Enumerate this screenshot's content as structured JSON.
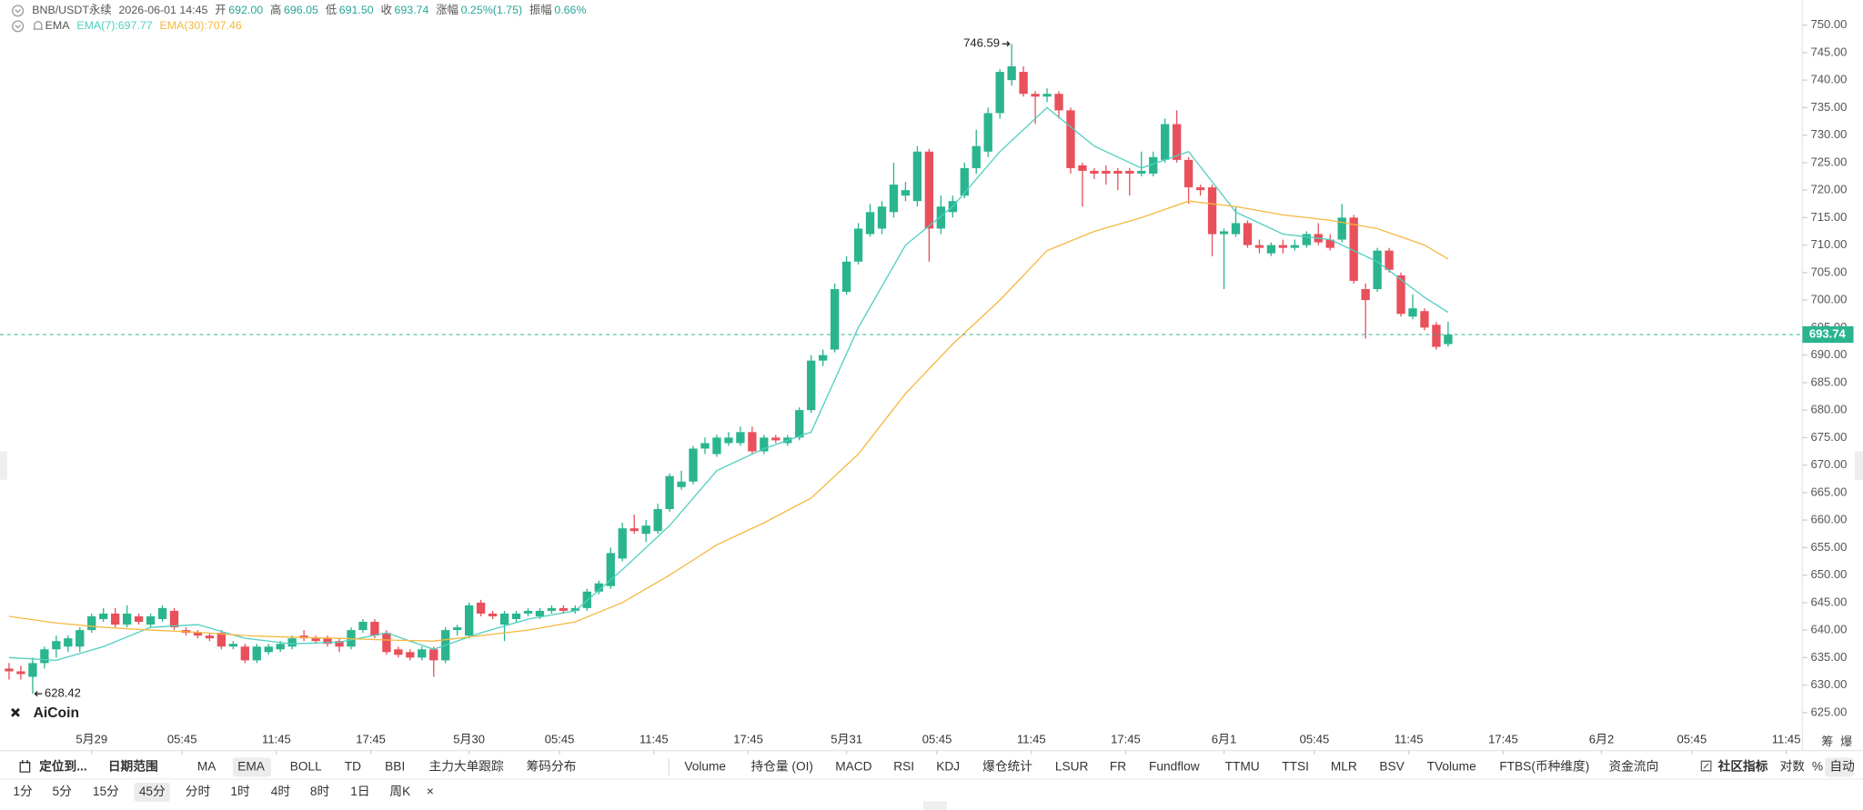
{
  "chart_data": {
    "type": "candlestick",
    "header": [
      "BNB/USDT永续",
      "2026-06-01 14:45",
      "开",
      "692.00",
      "高",
      "696.05",
      "低",
      "691.50",
      "收",
      "693.74",
      "涨幅",
      "0.25%(1.75)",
      "振幅",
      "0.66%"
    ],
    "indicator_label": "EMA",
    "up_color": "#2ab58f",
    "down_color": "#e8505b",
    "x": [
      -5.25,
      -4.5,
      -3.75,
      -3,
      -2.25,
      -1.5,
      -0.75,
      0,
      0.75,
      1.5,
      2.25,
      3,
      3.75,
      4.5,
      5.25,
      6,
      6.75,
      7.5,
      8.25,
      9,
      9.75,
      10.5,
      11.25,
      12,
      12.75,
      13.5,
      14.25,
      15,
      15.75,
      16.5,
      17.25,
      18,
      18.75,
      19.5,
      20.25,
      21,
      21.75,
      22.5,
      23.25,
      24,
      24.75,
      25.5,
      26.25,
      27,
      27.75,
      28.5,
      29.25,
      30,
      30.75,
      31.5,
      32.25,
      33,
      33.75,
      34.5,
      35.25,
      36,
      36.75,
      37.5,
      38.25,
      39,
      39.75,
      40.5,
      41.25,
      42,
      42.75,
      43.5,
      44.25,
      45,
      45.75,
      46.5,
      47.25,
      48,
      48.75,
      49.5,
      50.25,
      51,
      51.75,
      52.5,
      53.25,
      54,
      54.75,
      55.5,
      56.25,
      57,
      57.75,
      58.5,
      59.25,
      60,
      60.75,
      61.5,
      62.25,
      63,
      63.75,
      64.5,
      65.25,
      66,
      66.75,
      67.5,
      68.25,
      69,
      69.75,
      70.5,
      71.25,
      72,
      72.75,
      73.5,
      74.25,
      75,
      75.75,
      76.5,
      77.25,
      78,
      78.75,
      79.5,
      80.25,
      81,
      81.75,
      82.5,
      83.25,
      84,
      84.75,
      85.5,
      86.25
    ],
    "open": [
      633,
      632.5,
      631.5,
      634,
      636.5,
      637,
      637,
      640,
      642,
      643,
      641,
      642.5,
      641,
      642,
      643.5,
      640,
      639.5,
      639,
      639.5,
      637,
      637,
      634.5,
      636,
      636.5,
      637,
      639,
      638.5,
      638.5,
      638,
      637,
      640,
      641.5,
      639.5,
      636.5,
      636,
      635,
      636.5,
      634.5,
      640,
      639,
      645,
      643,
      641,
      642,
      643,
      642.5,
      643.5,
      644,
      643.5,
      644,
      647,
      648,
      653,
      658.5,
      657.5,
      658,
      662,
      666,
      667,
      673,
      672,
      674,
      674,
      676,
      672.5,
      675,
      674,
      675,
      680,
      689,
      691,
      701.5,
      707,
      712,
      713,
      716,
      719,
      718,
      727,
      713,
      716,
      719,
      724,
      727,
      734,
      740,
      741.5,
      737.5,
      737,
      737.5,
      734.5,
      724.5,
      723.5,
      723.5,
      723.5,
      723.5,
      723,
      723,
      725.5,
      732,
      725.5,
      720.5,
      720.5,
      712,
      712,
      714,
      710,
      708.5,
      710,
      709.5,
      710,
      712,
      711,
      711,
      715,
      702,
      702,
      709,
      704.5,
      697,
      698,
      695.5,
      692
    ],
    "high": [
      634,
      633.5,
      635,
      637,
      639,
      639,
      640.5,
      643,
      644,
      644,
      644.5,
      643,
      643,
      644.5,
      644,
      640.5,
      640,
      639.5,
      640,
      638,
      637.5,
      637.5,
      637.5,
      638,
      639,
      640,
      639,
      639,
      638.5,
      640.5,
      642,
      642,
      640,
      637,
      636.5,
      637,
      637,
      640.5,
      641,
      645,
      645.5,
      643.5,
      643.5,
      643.5,
      644,
      644,
      644.5,
      644.5,
      644.5,
      647.5,
      649,
      655,
      659.5,
      661,
      660,
      663,
      668.5,
      669,
      673.5,
      675,
      675.5,
      676,
      677,
      677,
      675.5,
      675.5,
      675.5,
      680.5,
      690,
      691,
      703,
      708,
      714,
      717.5,
      718,
      725,
      721.5,
      728,
      727.5,
      719,
      719,
      725,
      731,
      735,
      742,
      746.59,
      742.5,
      738,
      738.5,
      738,
      735,
      725,
      724,
      724.5,
      724,
      724,
      727,
      727,
      733,
      734.5,
      726,
      721,
      721,
      713,
      717,
      714.5,
      711,
      710.5,
      711,
      711,
      712.5,
      714,
      712,
      717.5,
      715.5,
      703,
      709.5,
      709.5,
      705,
      701,
      698.5,
      696,
      696.05
    ],
    "low": [
      631,
      631,
      628.42,
      633,
      635,
      636,
      636,
      639.5,
      641.5,
      640.5,
      640.5,
      641,
      640.5,
      641.5,
      640,
      639,
      638.5,
      638,
      636.5,
      636.5,
      634,
      634,
      635.5,
      636,
      636.5,
      638,
      637.5,
      637,
      636,
      636.5,
      639.5,
      638.5,
      635.5,
      635,
      634.5,
      634.5,
      631.5,
      634,
      639,
      638.5,
      642.5,
      642,
      638,
      641.5,
      642.5,
      642,
      643,
      643,
      643,
      643.5,
      646.5,
      647.5,
      652.5,
      657.5,
      656,
      657.5,
      661.5,
      665.5,
      666.5,
      672,
      671.5,
      673.5,
      673.5,
      672,
      672,
      674,
      673.5,
      674.5,
      679.5,
      688,
      690.5,
      701,
      706.5,
      711.5,
      712,
      715,
      718,
      717,
      707,
      712,
      715,
      718.5,
      723,
      726,
      733,
      739,
      737,
      732,
      736,
      733,
      723,
      717,
      722,
      721,
      720,
      719,
      722.5,
      722.5,
      725,
      725,
      717.5,
      719,
      708,
      702,
      711.5,
      709.5,
      708.5,
      708,
      708.5,
      709,
      709.5,
      710,
      709,
      710.5,
      703,
      693,
      701.5,
      705,
      697,
      696.5,
      694.5,
      691,
      691.5
    ],
    "close": [
      632.5,
      632,
      634,
      636.5,
      638,
      638.5,
      640,
      642.5,
      643,
      641,
      643,
      641.5,
      642.5,
      644,
      640.5,
      639.5,
      639,
      638.5,
      637,
      637.5,
      634.5,
      637,
      637,
      637.5,
      638.5,
      638.5,
      638,
      637.5,
      637,
      640,
      641.5,
      639,
      636,
      635.5,
      635,
      636.5,
      634.5,
      640,
      640.5,
      644.5,
      643,
      642.5,
      643,
      643,
      643.5,
      643.5,
      644,
      643.5,
      644,
      647,
      648.5,
      654,
      658.5,
      658,
      659,
      662,
      668,
      667,
      673,
      674,
      675,
      675,
      676,
      672.5,
      675,
      674.5,
      675,
      680,
      689,
      690,
      702,
      707,
      713,
      716,
      717,
      721,
      720,
      727,
      713,
      717,
      718,
      724,
      728,
      734,
      741.5,
      742.5,
      737.5,
      737,
      737.5,
      734.5,
      724,
      723.5,
      723,
      723,
      723,
      723,
      723.5,
      726,
      732,
      725.5,
      720.5,
      720,
      712,
      712.5,
      714,
      710,
      709.5,
      710,
      709.5,
      710,
      712,
      710.5,
      709.5,
      715,
      703.5,
      700,
      709,
      705.5,
      697.5,
      698.5,
      695,
      691.5,
      693.74
    ],
    "series": [
      {
        "name": "EMA(7):697.77",
        "color": "#4fcfc0",
        "x": [
          -5.25,
          -2.25,
          0.75,
          3.75,
          6.75,
          9.75,
          12.75,
          15.75,
          18.75,
          21.75,
          24.75,
          27.75,
          30.75,
          33.75,
          36.75,
          39.75,
          42.75,
          45.75,
          48.75,
          51.75,
          54.75,
          57.75,
          60.75,
          63.75,
          66.75,
          69.75,
          72.75,
          75.75,
          78.75,
          81.75,
          84.75,
          86.25
        ],
        "values": [
          635,
          634.5,
          637,
          640.5,
          641,
          638.5,
          637.5,
          637.8,
          639.5,
          636.5,
          639.5,
          642,
          643.5,
          651,
          659,
          669,
          673,
          676,
          695,
          710,
          717,
          727,
          735,
          728,
          724,
          727,
          716,
          712,
          711,
          707,
          700.5,
          697.77
        ]
      },
      {
        "name": "EMA(30):707.46",
        "color": "#f6b83f",
        "x": [
          -5.25,
          -2.25,
          0.75,
          3.75,
          6.75,
          9.75,
          12.75,
          15.75,
          18.75,
          21.75,
          24.75,
          27.75,
          30.75,
          33.75,
          36.75,
          39.75,
          42.75,
          45.75,
          48.75,
          51.75,
          54.75,
          57.75,
          60.75,
          63.75,
          66.75,
          69.75,
          72.75,
          75.75,
          78.75,
          81.75,
          84.75,
          86.25
        ],
        "values": [
          642.5,
          641.3,
          640.5,
          640,
          639.6,
          639,
          638.7,
          638.5,
          638.2,
          638,
          639,
          640,
          641.5,
          645,
          650,
          655.5,
          659.5,
          664,
          672,
          683,
          692,
          700,
          709,
          712.5,
          715,
          718,
          717,
          715.5,
          714.5,
          713,
          710,
          707.46
        ]
      }
    ],
    "max_marker": 746.59,
    "min_marker": 628.42,
    "last_price": 693.74,
    "xlim": [
      -5.6,
      108.4
    ],
    "ylim": [
      618.1,
      753.9
    ],
    "xticks": [
      {
        "value": 0,
        "label": "5月29"
      },
      {
        "value": 5.75,
        "label": "05:45"
      },
      {
        "value": 11.75,
        "label": "11:45"
      },
      {
        "value": 17.75,
        "label": "17:45"
      },
      {
        "value": 24,
        "label": "5月30"
      },
      {
        "value": 29.75,
        "label": "05:45"
      },
      {
        "value": 35.75,
        "label": "11:45"
      },
      {
        "value": 41.75,
        "label": "17:45"
      },
      {
        "value": 48,
        "label": "5月31"
      },
      {
        "value": 53.75,
        "label": "05:45"
      },
      {
        "value": 59.75,
        "label": "11:45"
      },
      {
        "value": 65.75,
        "label": "17:45"
      },
      {
        "value": 72,
        "label": "6月1"
      },
      {
        "value": 77.75,
        "label": "05:45"
      },
      {
        "value": 83.75,
        "label": "11:45"
      },
      {
        "value": 89.75,
        "label": "17:45"
      },
      {
        "value": 96,
        "label": "6月2"
      },
      {
        "value": 101.75,
        "label": "05:45"
      },
      {
        "value": 107.75,
        "label": "11:45"
      }
    ],
    "yticks": [
      {
        "value": 625,
        "label": "625.00"
      },
      {
        "value": 630,
        "label": "630.00"
      },
      {
        "value": 635,
        "label": "635.00"
      },
      {
        "value": 640,
        "label": "640.00"
      },
      {
        "value": 645,
        "label": "645.00"
      },
      {
        "value": 650,
        "label": "650.00"
      },
      {
        "value": 655,
        "label": "655.00"
      },
      {
        "value": 660,
        "label": "660.00"
      },
      {
        "value": 665,
        "label": "665.00"
      },
      {
        "value": 670,
        "label": "670.00"
      },
      {
        "value": 675,
        "label": "675.00"
      },
      {
        "value": 680,
        "label": "680.00"
      },
      {
        "value": 685,
        "label": "685.00"
      },
      {
        "value": 690,
        "label": "690.00"
      },
      {
        "value": 695,
        "label": "695.00"
      },
      {
        "value": 700,
        "label": "700.00"
      },
      {
        "value": 705,
        "label": "705.00"
      },
      {
        "value": 710,
        "label": "710.00"
      },
      {
        "value": 715,
        "label": "715.00"
      },
      {
        "value": 720,
        "label": "720.00"
      },
      {
        "value": 725,
        "label": "725.00"
      },
      {
        "value": 730,
        "label": "730.00"
      },
      {
        "value": 735,
        "label": "735.00"
      },
      {
        "value": 740,
        "label": "740.00"
      },
      {
        "value": 745,
        "label": "745.00"
      },
      {
        "value": 750,
        "label": "750.00"
      }
    ]
  },
  "logo": "AiCoin",
  "side_tabs": [
    "筹",
    "爆"
  ],
  "toolbar": {
    "indicators": [
      "定位到...",
      "日期范围",
      "MA",
      "EMA",
      "BOLL",
      "TD",
      "BBI",
      "主力大单跟踪",
      "筹码分布",
      "Volume",
      "持仓量 (OI)",
      "MACD",
      "RSI",
      "KDJ",
      "爆仓统计",
      "LSUR",
      "FR",
      "Fundflow",
      "TTMU",
      "TTSI",
      "MLR",
      "BSV",
      "TVolume",
      "FTBS(币种维度)",
      "资金流向",
      "社区指标",
      "对数",
      "%",
      "自动"
    ],
    "periods": [
      "1分",
      "5分",
      "15分",
      "45分",
      "分时",
      "1时",
      "4时",
      "8时",
      "1日",
      "周K",
      "×"
    ]
  }
}
